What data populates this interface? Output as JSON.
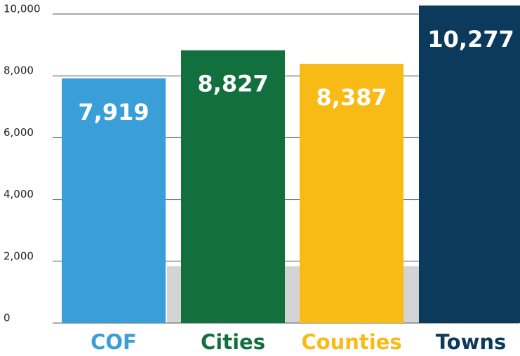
{
  "chart_data": {
    "type": "bar",
    "categories": [
      "COF",
      "Cities",
      "Counties",
      "Towns"
    ],
    "values": [
      7919,
      8827,
      8387,
      10277
    ],
    "value_labels": [
      "7,919",
      "8,827",
      "8,387",
      "10,277"
    ],
    "colors": [
      "#3a9fd8",
      "#12703f",
      "#f8bb15",
      "#0b3a5c"
    ],
    "ylim": [
      0,
      10000
    ],
    "yticks": [
      0,
      {
        "value": 2000,
        "label": "2,000"
      },
      {
        "value": 4000,
        "label": "4,000"
      },
      {
        "value": 6000,
        "label": "6,000"
      },
      {
        "value": 8000,
        "label": "8,000"
      },
      {
        "value": 10000,
        "label": "10,000"
      }
    ],
    "grid": true
  }
}
